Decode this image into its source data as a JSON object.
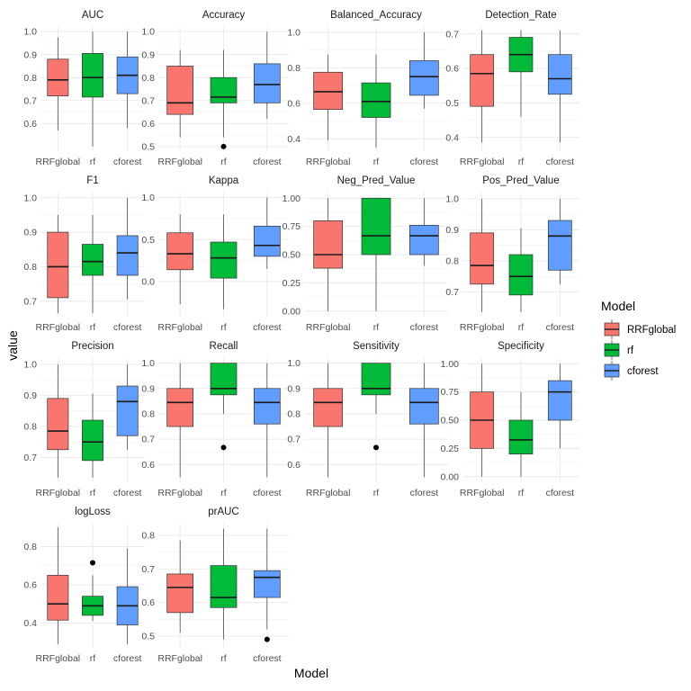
{
  "chart_data": {
    "type": "box",
    "xlabel": "Model",
    "ylabel": "value",
    "legend": {
      "title": "Model",
      "position": "right",
      "entries": [
        "RRFglobal",
        "rf",
        "cforest"
      ]
    },
    "categories": [
      "RRFglobal",
      "rf",
      "cforest"
    ],
    "colors": {
      "RRFglobal": "#F8766D",
      "rf": "#00BA38",
      "cforest": "#619CFF"
    },
    "panels": [
      {
        "name": "AUC",
        "ylim": [
          0.48,
          1.02
        ],
        "ticks": [
          0.6,
          0.7,
          0.8,
          0.9,
          1.0
        ],
        "tick_labels": [
          "0.6",
          "0.7",
          "0.8",
          "0.9",
          "1.0"
        ],
        "boxes": [
          {
            "model": "RRFglobal",
            "min": 0.57,
            "q1": 0.72,
            "median": 0.79,
            "q3": 0.88,
            "max": 0.975,
            "outliers": []
          },
          {
            "model": "rf",
            "min": 0.5,
            "q1": 0.715,
            "median": 0.8,
            "q3": 0.905,
            "max": 1.0,
            "outliers": []
          },
          {
            "model": "cforest",
            "min": 0.58,
            "q1": 0.73,
            "median": 0.81,
            "q3": 0.89,
            "max": 1.0,
            "outliers": []
          }
        ]
      },
      {
        "name": "Accuracy",
        "ylim": [
          0.48,
          1.02
        ],
        "ticks": [
          0.5,
          0.6,
          0.7,
          0.8,
          0.9,
          1.0
        ],
        "tick_labels": [
          "0.5",
          "0.6",
          "0.7",
          "0.8",
          "0.9",
          "1.0"
        ],
        "boxes": [
          {
            "model": "RRFglobal",
            "min": 0.54,
            "q1": 0.64,
            "median": 0.69,
            "q3": 0.85,
            "max": 0.92,
            "outliers": []
          },
          {
            "model": "rf",
            "min": 0.54,
            "q1": 0.69,
            "median": 0.715,
            "q3": 0.8,
            "max": 0.92,
            "outliers": [
              0.5
            ]
          },
          {
            "model": "cforest",
            "min": 0.62,
            "q1": 0.69,
            "median": 0.77,
            "q3": 0.86,
            "max": 1.0,
            "outliers": []
          }
        ]
      },
      {
        "name": "Balanced_Accuracy",
        "ylim": [
          0.33,
          1.03
        ],
        "ticks": [
          0.4,
          0.6,
          0.8,
          1.0
        ],
        "tick_labels": [
          "0.4",
          "0.6",
          "0.8",
          "1.0"
        ],
        "boxes": [
          {
            "model": "RRFglobal",
            "min": 0.39,
            "q1": 0.565,
            "median": 0.665,
            "q3": 0.775,
            "max": 0.875,
            "outliers": []
          },
          {
            "model": "rf",
            "min": 0.35,
            "q1": 0.52,
            "median": 0.61,
            "q3": 0.715,
            "max": 0.875,
            "outliers": []
          },
          {
            "model": "cforest",
            "min": 0.57,
            "q1": 0.645,
            "median": 0.75,
            "q3": 0.84,
            "max": 1.0,
            "outliers": []
          }
        ]
      },
      {
        "name": "Detection_Rate",
        "ylim": [
          0.36,
          0.72
        ],
        "ticks": [
          0.4,
          0.5,
          0.6,
          0.7
        ],
        "tick_labels": [
          "0.4",
          "0.5",
          "0.6",
          "0.7"
        ],
        "boxes": [
          {
            "model": "RRFglobal",
            "min": 0.385,
            "q1": 0.49,
            "median": 0.585,
            "q3": 0.64,
            "max": 0.71,
            "outliers": []
          },
          {
            "model": "rf",
            "min": 0.46,
            "q1": 0.59,
            "median": 0.64,
            "q3": 0.69,
            "max": 0.71,
            "outliers": []
          },
          {
            "model": "cforest",
            "min": 0.385,
            "q1": 0.525,
            "median": 0.57,
            "q3": 0.64,
            "max": 0.71,
            "outliers": []
          }
        ]
      },
      {
        "name": "F1",
        "ylim": [
          0.655,
          1.015
        ],
        "ticks": [
          0.7,
          0.8,
          0.9,
          1.0
        ],
        "tick_labels": [
          "0.7",
          "0.8",
          "0.9",
          "1.0"
        ],
        "boxes": [
          {
            "model": "RRFglobal",
            "min": 0.665,
            "q1": 0.71,
            "median": 0.8,
            "q3": 0.9,
            "max": 0.95,
            "outliers": []
          },
          {
            "model": "rf",
            "min": 0.665,
            "q1": 0.775,
            "median": 0.815,
            "q3": 0.865,
            "max": 0.95,
            "outliers": []
          },
          {
            "model": "cforest",
            "min": 0.705,
            "q1": 0.775,
            "median": 0.84,
            "q3": 0.89,
            "max": 1.0,
            "outliers": []
          }
        ]
      },
      {
        "name": "Kappa",
        "ylim": [
          -0.42,
          1.06
        ],
        "ticks": [
          0.0,
          0.5,
          1.0
        ],
        "tick_labels": [
          "0.0",
          "0.5",
          "1.0"
        ],
        "boxes": [
          {
            "model": "RRFglobal",
            "min": -0.27,
            "q1": 0.14,
            "median": 0.33,
            "q3": 0.58,
            "max": 0.8,
            "outliers": []
          },
          {
            "model": "rf",
            "min": -0.33,
            "q1": 0.04,
            "median": 0.28,
            "q3": 0.47,
            "max": 0.8,
            "outliers": []
          },
          {
            "model": "cforest",
            "min": 0.15,
            "q1": 0.3,
            "median": 0.43,
            "q3": 0.66,
            "max": 1.0,
            "outliers": []
          }
        ]
      },
      {
        "name": "Neg_Pred_Value",
        "ylim": [
          -0.05,
          1.05
        ],
        "ticks": [
          0.0,
          0.25,
          0.5,
          0.75,
          1.0
        ],
        "tick_labels": [
          "0.00",
          "0.25",
          "0.50",
          "0.75",
          "1.00"
        ],
        "boxes": [
          {
            "model": "RRFglobal",
            "min": 0.0,
            "q1": 0.38,
            "median": 0.5,
            "q3": 0.8,
            "max": 1.0,
            "outliers": []
          },
          {
            "model": "rf",
            "min": 0.0,
            "q1": 0.5,
            "median": 0.667,
            "q3": 1.0,
            "max": 1.0,
            "outliers": []
          },
          {
            "model": "cforest",
            "min": 0.4,
            "q1": 0.5,
            "median": 0.667,
            "q3": 0.76,
            "max": 1.0,
            "outliers": []
          }
        ]
      },
      {
        "name": "Pos_Pred_Value",
        "ylim": [
          0.62,
          1.02
        ],
        "ticks": [
          0.7,
          0.8,
          0.9,
          1.0
        ],
        "tick_labels": [
          "0.7",
          "0.8",
          "0.9",
          "1.0"
        ],
        "boxes": [
          {
            "model": "RRFglobal",
            "min": 0.635,
            "q1": 0.725,
            "median": 0.785,
            "q3": 0.89,
            "max": 1.0,
            "outliers": []
          },
          {
            "model": "rf",
            "min": 0.635,
            "q1": 0.69,
            "median": 0.75,
            "q3": 0.82,
            "max": 0.905,
            "outliers": []
          },
          {
            "model": "cforest",
            "min": 0.725,
            "q1": 0.77,
            "median": 0.88,
            "q3": 0.93,
            "max": 1.0,
            "outliers": []
          }
        ]
      },
      {
        "name": "Precision",
        "ylim": [
          0.62,
          1.02
        ],
        "ticks": [
          0.7,
          0.8,
          0.9,
          1.0
        ],
        "tick_labels": [
          "0.7",
          "0.8",
          "0.9",
          "1.0"
        ],
        "boxes": [
          {
            "model": "RRFglobal",
            "min": 0.635,
            "q1": 0.725,
            "median": 0.785,
            "q3": 0.89,
            "max": 1.0,
            "outliers": []
          },
          {
            "model": "rf",
            "min": 0.635,
            "q1": 0.69,
            "median": 0.75,
            "q3": 0.82,
            "max": 0.905,
            "outliers": []
          },
          {
            "model": "cforest",
            "min": 0.725,
            "q1": 0.77,
            "median": 0.88,
            "q3": 0.93,
            "max": 1.0,
            "outliers": []
          }
        ]
      },
      {
        "name": "Recall",
        "ylim": [
          0.53,
          1.02
        ],
        "ticks": [
          0.6,
          0.7,
          0.8,
          0.9,
          1.0
        ],
        "tick_labels": [
          "0.6",
          "0.7",
          "0.8",
          "0.9",
          "1.0"
        ],
        "boxes": [
          {
            "model": "RRFglobal",
            "min": 0.55,
            "q1": 0.75,
            "median": 0.845,
            "q3": 0.9,
            "max": 1.0,
            "outliers": []
          },
          {
            "model": "rf",
            "min": 0.8,
            "q1": 0.875,
            "median": 0.9,
            "q3": 1.0,
            "max": 1.0,
            "outliers": [
              0.667
            ]
          },
          {
            "model": "cforest",
            "min": 0.55,
            "q1": 0.76,
            "median": 0.845,
            "q3": 0.9,
            "max": 1.0,
            "outliers": []
          }
        ]
      },
      {
        "name": "Sensitivity",
        "ylim": [
          0.53,
          1.02
        ],
        "ticks": [
          0.6,
          0.7,
          0.8,
          0.9,
          1.0
        ],
        "tick_labels": [
          "0.6",
          "0.7",
          "0.8",
          "0.9",
          "1.0"
        ],
        "boxes": [
          {
            "model": "RRFglobal",
            "min": 0.55,
            "q1": 0.75,
            "median": 0.845,
            "q3": 0.9,
            "max": 1.0,
            "outliers": []
          },
          {
            "model": "rf",
            "min": 0.8,
            "q1": 0.875,
            "median": 0.9,
            "q3": 1.0,
            "max": 1.0,
            "outliers": [
              0.667
            ]
          },
          {
            "model": "cforest",
            "min": 0.55,
            "q1": 0.76,
            "median": 0.845,
            "q3": 0.9,
            "max": 1.0,
            "outliers": []
          }
        ]
      },
      {
        "name": "Specificity",
        "ylim": [
          -0.05,
          1.05
        ],
        "ticks": [
          0.0,
          0.25,
          0.5,
          0.75,
          1.0
        ],
        "tick_labels": [
          "0.00",
          "0.25",
          "0.50",
          "0.75",
          "1.00"
        ],
        "boxes": [
          {
            "model": "RRFglobal",
            "min": 0.0,
            "q1": 0.25,
            "median": 0.5,
            "q3": 0.75,
            "max": 1.0,
            "outliers": []
          },
          {
            "model": "rf",
            "min": 0.0,
            "q1": 0.2,
            "median": 0.325,
            "q3": 0.5,
            "max": 0.75,
            "outliers": []
          },
          {
            "model": "cforest",
            "min": 0.25,
            "q1": 0.5,
            "median": 0.75,
            "q3": 0.85,
            "max": 1.0,
            "outliers": []
          }
        ]
      },
      {
        "name": "logLoss",
        "ylim": [
          0.27,
          0.92
        ],
        "ticks": [
          0.4,
          0.6,
          0.8
        ],
        "tick_labels": [
          "0.4",
          "0.6",
          "0.8"
        ],
        "boxes": [
          {
            "model": "RRFglobal",
            "min": 0.29,
            "q1": 0.415,
            "median": 0.5,
            "q3": 0.65,
            "max": 0.9,
            "outliers": []
          },
          {
            "model": "rf",
            "min": 0.41,
            "q1": 0.44,
            "median": 0.49,
            "q3": 0.54,
            "max": 0.65,
            "outliers": [
              0.715
            ]
          },
          {
            "model": "cforest",
            "min": 0.29,
            "q1": 0.39,
            "median": 0.49,
            "q3": 0.59,
            "max": 0.79,
            "outliers": []
          }
        ]
      },
      {
        "name": "prAUC",
        "ylim": [
          0.465,
          0.835
        ],
        "ticks": [
          0.5,
          0.6,
          0.7,
          0.8
        ],
        "tick_labels": [
          "0.5",
          "0.6",
          "0.7",
          "0.8"
        ],
        "boxes": [
          {
            "model": "RRFglobal",
            "min": 0.51,
            "q1": 0.57,
            "median": 0.645,
            "q3": 0.685,
            "max": 0.785,
            "outliers": []
          },
          {
            "model": "rf",
            "min": 0.49,
            "q1": 0.585,
            "median": 0.615,
            "q3": 0.71,
            "max": 0.82,
            "outliers": []
          },
          {
            "model": "cforest",
            "min": 0.52,
            "q1": 0.615,
            "median": 0.675,
            "q3": 0.695,
            "max": 0.82,
            "outliers": [
              0.49
            ]
          }
        ]
      }
    ]
  }
}
